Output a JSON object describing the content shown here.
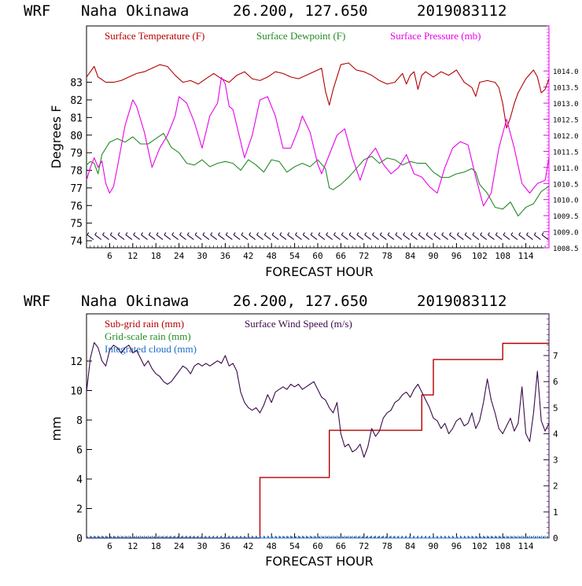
{
  "chart_data": [
    {
      "type": "line",
      "header": {
        "model": "WRF",
        "station": "Naha Okinawa",
        "coords": "26.200, 127.650",
        "init": "2019083112"
      },
      "xlabel": "FORECAST HOUR",
      "ylabel": "Degrees F",
      "xlim": [
        0,
        120
      ],
      "xticks": [
        6,
        12,
        18,
        24,
        30,
        36,
        42,
        48,
        54,
        60,
        66,
        72,
        78,
        84,
        90,
        96,
        102,
        108,
        114
      ],
      "xtick_labels": [
        "6",
        "12",
        "18",
        "24",
        "30",
        "36",
        "42",
        "48",
        "54",
        "60",
        "66",
        "72",
        "78",
        "84",
        "90",
        "96",
        "102",
        "108",
        "114"
      ],
      "ylim": [
        73.6,
        86.2
      ],
      "yticks": [
        74,
        75,
        76,
        77,
        78,
        79,
        80,
        81,
        82,
        83
      ],
      "ytick_labels": [
        "74",
        "75",
        "76",
        "77",
        "78",
        "79",
        "80",
        "81",
        "82",
        "83"
      ],
      "y2lim": [
        1008.5,
        1015.4
      ],
      "y2ticks": [
        1008.5,
        1009.0,
        1009.5,
        1010.0,
        1010.5,
        1011.0,
        1011.5,
        1012.0,
        1012.5,
        1013.0,
        1013.5,
        1014.0
      ],
      "y2tick_labels": [
        "1008.5",
        "1009.0",
        "1009.5",
        "1010.0",
        "1010.5",
        "1011.0",
        "1011.5",
        "1012.0",
        "1012.5",
        "1013.0",
        "1013.5",
        "1014.0"
      ],
      "series": [
        {
          "name": "Surface Temperature (F)",
          "color": "#b30000",
          "axis": "left",
          "x": [
            0,
            1,
            2,
            3,
            5,
            7,
            9,
            11,
            13,
            15,
            17,
            19,
            21,
            23,
            25,
            27,
            29,
            31,
            33,
            35,
            37,
            39,
            41,
            43,
            45,
            47,
            49,
            51,
            53,
            55,
            57,
            59,
            61,
            62,
            63,
            64,
            65,
            66,
            68,
            70,
            72,
            74,
            76,
            78,
            80,
            82,
            83,
            84,
            85,
            86,
            87,
            88,
            90,
            92,
            94,
            96,
            98,
            100,
            101,
            102,
            104,
            106,
            107,
            108,
            109,
            110,
            111,
            112,
            114,
            116,
            117,
            118,
            119,
            120
          ],
          "y": [
            83.3,
            83.6,
            83.9,
            83.3,
            83.0,
            83.0,
            83.1,
            83.3,
            83.5,
            83.6,
            83.8,
            84.0,
            83.9,
            83.4,
            83.0,
            83.1,
            82.9,
            83.2,
            83.5,
            83.2,
            83.0,
            83.4,
            83.6,
            83.2,
            83.1,
            83.3,
            83.6,
            83.5,
            83.3,
            83.2,
            83.4,
            83.6,
            83.8,
            82.5,
            81.7,
            82.6,
            83.3,
            84.0,
            84.1,
            83.7,
            83.6,
            83.4,
            83.1,
            82.9,
            83.0,
            83.5,
            82.9,
            83.4,
            83.6,
            82.6,
            83.4,
            83.6,
            83.3,
            83.6,
            83.4,
            83.7,
            83.0,
            82.7,
            82.2,
            83.0,
            83.1,
            83.0,
            82.7,
            81.8,
            80.4,
            81.0,
            81.8,
            82.4,
            83.2,
            83.7,
            83.3,
            82.4,
            82.6,
            83.2
          ]
        },
        {
          "name": "Surface Dewpoint (F)",
          "color": "#228b22",
          "axis": "left",
          "x": [
            0,
            1,
            2,
            3,
            4,
            6,
            8,
            10,
            12,
            14,
            16,
            18,
            20,
            22,
            24,
            26,
            28,
            30,
            32,
            34,
            36,
            38,
            40,
            42,
            44,
            46,
            48,
            50,
            52,
            54,
            56,
            58,
            60,
            62,
            63,
            64,
            66,
            68,
            70,
            72,
            74,
            76,
            78,
            80,
            82,
            84,
            86,
            88,
            90,
            92,
            94,
            96,
            98,
            100,
            101,
            102,
            104,
            106,
            108,
            110,
            112,
            114,
            116,
            118,
            120
          ],
          "y": [
            78.3,
            78.5,
            78.4,
            77.8,
            78.9,
            79.6,
            79.8,
            79.6,
            79.9,
            79.5,
            79.5,
            79.8,
            80.1,
            79.3,
            79.0,
            78.4,
            78.3,
            78.6,
            78.2,
            78.4,
            78.5,
            78.4,
            78.0,
            78.6,
            78.3,
            77.9,
            78.6,
            78.5,
            77.9,
            78.2,
            78.4,
            78.2,
            78.6,
            78.1,
            77.0,
            76.9,
            77.2,
            77.6,
            78.1,
            78.6,
            78.8,
            78.4,
            78.7,
            78.6,
            78.3,
            78.5,
            78.4,
            78.4,
            77.9,
            77.6,
            77.6,
            77.8,
            77.9,
            78.1,
            77.9,
            77.2,
            76.7,
            75.9,
            75.8,
            76.2,
            75.4,
            75.9,
            76.1,
            76.8,
            77.1
          ]
        },
        {
          "name": "Surface Pressure (mb)",
          "color": "#e800e8",
          "axis": "right",
          "x": [
            0,
            1,
            2,
            3,
            4,
            5,
            6,
            7,
            8,
            10,
            12,
            13,
            15,
            17,
            19,
            21,
            23,
            24,
            26,
            28,
            30,
            32,
            34,
            35,
            36,
            37,
            38,
            40,
            41,
            43,
            45,
            47,
            49,
            51,
            53,
            55,
            56,
            58,
            60,
            61,
            63,
            65,
            67,
            69,
            71,
            73,
            75,
            77,
            79,
            81,
            83,
            85,
            87,
            89,
            91,
            93,
            95,
            97,
            99,
            101,
            103,
            105,
            107,
            109,
            111,
            113,
            115,
            117,
            119,
            120
          ],
          "y": [
            1010.6,
            1011.0,
            1011.3,
            1011.0,
            1011.2,
            1010.5,
            1010.2,
            1010.4,
            1011.0,
            1012.3,
            1013.1,
            1012.9,
            1012.1,
            1011.0,
            1011.6,
            1012.0,
            1012.6,
            1013.2,
            1013.0,
            1012.4,
            1011.6,
            1012.6,
            1013.0,
            1013.8,
            1013.6,
            1012.9,
            1012.8,
            1011.8,
            1011.3,
            1012.0,
            1013.1,
            1013.2,
            1012.6,
            1011.6,
            1011.6,
            1012.2,
            1012.6,
            1012.1,
            1011.1,
            1010.8,
            1011.4,
            1012.0,
            1012.2,
            1011.3,
            1010.6,
            1011.3,
            1011.6,
            1011.1,
            1010.8,
            1011.0,
            1011.4,
            1010.8,
            1010.7,
            1010.4,
            1010.2,
            1011.0,
            1011.6,
            1011.8,
            1011.7,
            1010.7,
            1009.8,
            1010.2,
            1011.6,
            1012.5,
            1011.6,
            1010.5,
            1010.2,
            1010.5,
            1010.6,
            1011.3
          ]
        }
      ],
      "wind_barb_y": 74.2
    },
    {
      "type": "line",
      "header": {
        "model": "WRF",
        "station": "Naha Okinawa",
        "coords": "26.200, 127.650",
        "init": "2019083112"
      },
      "xlabel": "FORECAST HOUR",
      "ylabel": "mm",
      "xlim": [
        0,
        120
      ],
      "xticks": [
        6,
        12,
        18,
        24,
        30,
        36,
        42,
        48,
        54,
        60,
        66,
        72,
        78,
        84,
        90,
        96,
        102,
        108,
        114
      ],
      "xtick_labels": [
        "6",
        "12",
        "18",
        "24",
        "30",
        "36",
        "42",
        "48",
        "54",
        "60",
        "66",
        "72",
        "78",
        "84",
        "90",
        "96",
        "102",
        "108",
        "114"
      ],
      "ylim": [
        0,
        15.2
      ],
      "yticks": [
        0,
        2,
        4,
        6,
        8,
        10,
        12
      ],
      "ytick_labels": [
        "0",
        "2",
        "4",
        "6",
        "8",
        "10",
        "12"
      ],
      "y2lim": [
        0,
        8.6
      ],
      "y2ticks": [
        0,
        1,
        2,
        3,
        4,
        5,
        6,
        7
      ],
      "y2tick_labels": [
        "0",
        "1",
        "2",
        "3",
        "4",
        "5",
        "6",
        "7"
      ],
      "series": [
        {
          "name": "Sub-grid rain (mm)",
          "color": "#b30000",
          "axis": "left",
          "step": true,
          "x": [
            0,
            45,
            45,
            63,
            63,
            87,
            87,
            90,
            90,
            108,
            108,
            120
          ],
          "y": [
            0,
            0,
            4.1,
            4.1,
            7.3,
            7.3,
            9.7,
            9.7,
            12.1,
            12.1,
            13.2,
            13.2
          ]
        },
        {
          "name": "Grid-scale rain (mm)",
          "color": "#228b22",
          "axis": "left",
          "x": [
            0,
            120
          ],
          "y": [
            0,
            0
          ]
        },
        {
          "name": "Integrated cloud (mm)",
          "color": "#1e6ec8",
          "axis": "left",
          "x": [
            0,
            120
          ],
          "y": [
            0,
            0
          ]
        },
        {
          "name": "Surface Wind Speed (m/s)",
          "color": "#3a0a4a",
          "axis": "right",
          "x": [
            0,
            1,
            2,
            3,
            4,
            5,
            6,
            7,
            8,
            9,
            10,
            11,
            12,
            13,
            14,
            15,
            16,
            17,
            18,
            19,
            20,
            21,
            22,
            23,
            24,
            25,
            26,
            27,
            28,
            29,
            30,
            31,
            32,
            33,
            34,
            35,
            36,
            37,
            38,
            39,
            40,
            41,
            42,
            43,
            44,
            45,
            46,
            47,
            48,
            49,
            50,
            51,
            52,
            53,
            54,
            55,
            56,
            57,
            58,
            59,
            60,
            61,
            62,
            63,
            64,
            65,
            66,
            67,
            68,
            69,
            70,
            71,
            72,
            73,
            74,
            75,
            76,
            77,
            78,
            79,
            80,
            81,
            82,
            83,
            84,
            85,
            86,
            87,
            88,
            89,
            90,
            91,
            92,
            93,
            94,
            95,
            96,
            97,
            98,
            99,
            100,
            101,
            102,
            103,
            104,
            105,
            106,
            107,
            108,
            109,
            110,
            111,
            112,
            113,
            114,
            115,
            116,
            117,
            118,
            119,
            120
          ],
          "y": [
            5.6,
            6.9,
            7.5,
            7.3,
            6.8,
            6.6,
            7.2,
            7.4,
            7.3,
            7.1,
            7.3,
            7.4,
            7.1,
            7.2,
            6.9,
            6.6,
            6.8,
            6.5,
            6.3,
            6.2,
            6.0,
            5.9,
            6.0,
            6.2,
            6.4,
            6.6,
            6.5,
            6.3,
            6.6,
            6.7,
            6.6,
            6.7,
            6.6,
            6.7,
            6.8,
            6.7,
            7.0,
            6.6,
            6.7,
            6.4,
            5.6,
            5.2,
            5.0,
            4.9,
            5.0,
            4.8,
            5.1,
            5.5,
            5.2,
            5.6,
            5.7,
            5.8,
            5.7,
            5.9,
            5.8,
            5.9,
            5.7,
            5.8,
            5.9,
            6.0,
            5.7,
            5.4,
            5.3,
            5.0,
            4.8,
            5.2,
            4.0,
            3.5,
            3.6,
            3.3,
            3.4,
            3.6,
            3.1,
            3.5,
            4.2,
            3.9,
            4.1,
            4.6,
            4.8,
            4.9,
            5.2,
            5.3,
            5.5,
            5.6,
            5.4,
            5.7,
            5.9,
            5.6,
            5.3,
            5.0,
            4.6,
            4.5,
            4.2,
            4.4,
            4.0,
            4.2,
            4.5,
            4.6,
            4.3,
            4.4,
            4.8,
            4.2,
            4.5,
            5.2,
            6.1,
            5.3,
            4.8,
            4.2,
            4.0,
            4.3,
            4.6,
            4.1,
            4.4,
            5.8,
            4.0,
            3.7,
            4.8,
            6.4,
            4.5,
            4.1,
            4.4
          ]
        }
      ]
    }
  ]
}
